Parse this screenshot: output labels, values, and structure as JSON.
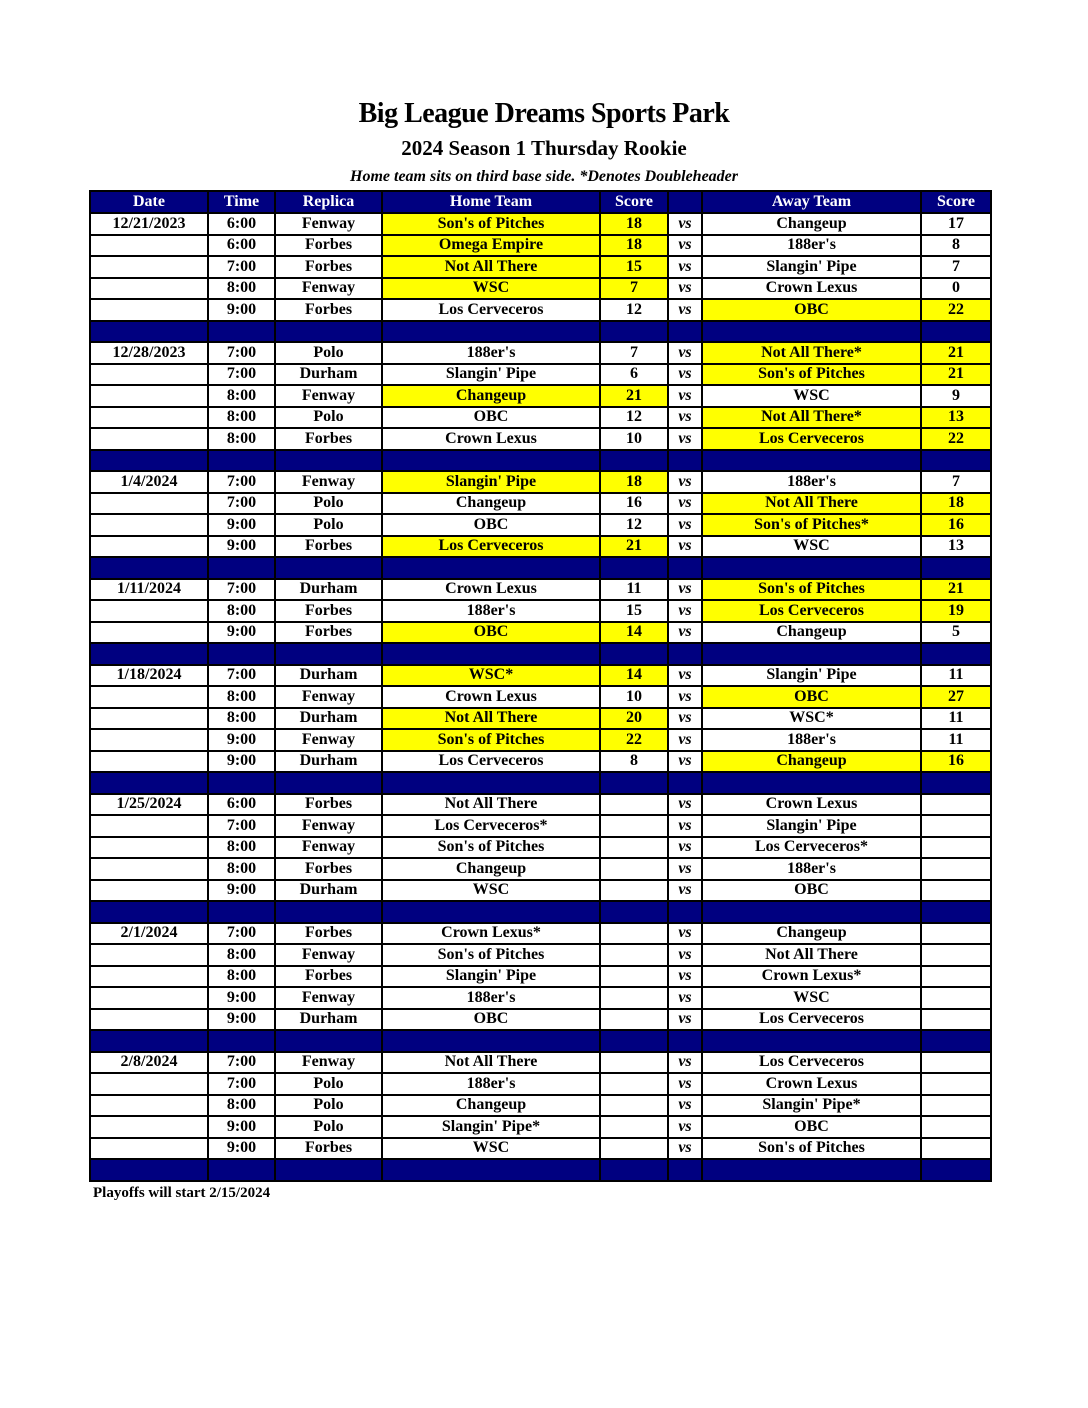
{
  "title": "Big League Dreams Sports Park",
  "subtitle": "2024 Season 1 Thursday Rookie",
  "note": "Home team sits on third base side.  *Denotes Doubleheader",
  "columns": [
    "Date",
    "Time",
    "Replica",
    "Home Team",
    "Score",
    "",
    "Away Team",
    "Score"
  ],
  "vs_label": "vs",
  "colors": {
    "header_bg": "#000080",
    "winner_highlight": "#ffff00"
  },
  "weeks": [
    {
      "date": "12/21/2023",
      "games": [
        {
          "time": "6:00",
          "replica": "Fenway",
          "home": "Son's of Pitches",
          "home_score": "18",
          "away": "Changeup",
          "away_score": "17",
          "winner": "home"
        },
        {
          "time": "6:00",
          "replica": "Forbes",
          "home": "Omega Empire",
          "home_score": "18",
          "away": "188er's",
          "away_score": "8",
          "winner": "home"
        },
        {
          "time": "7:00",
          "replica": "Forbes",
          "home": "Not All There",
          "home_score": "15",
          "away": "Slangin' Pipe",
          "away_score": "7",
          "winner": "home"
        },
        {
          "time": "8:00",
          "replica": "Fenway",
          "home": "WSC",
          "home_score": "7",
          "away": "Crown Lexus",
          "away_score": "0",
          "winner": "home"
        },
        {
          "time": "9:00",
          "replica": "Forbes",
          "home": "Los Cerveceros",
          "home_score": "12",
          "away": "OBC",
          "away_score": "22",
          "winner": "away"
        }
      ]
    },
    {
      "date": "12/28/2023",
      "games": [
        {
          "time": "7:00",
          "replica": "Polo",
          "home": "188er's",
          "home_score": "7",
          "away": "Not All There*",
          "away_score": "21",
          "winner": "away"
        },
        {
          "time": "7:00",
          "replica": "Durham",
          "home": "Slangin' Pipe",
          "home_score": "6",
          "away": "Son's of Pitches",
          "away_score": "21",
          "winner": "away"
        },
        {
          "time": "8:00",
          "replica": "Fenway",
          "home": "Changeup",
          "home_score": "21",
          "away": "WSC",
          "away_score": "9",
          "winner": "home"
        },
        {
          "time": "8:00",
          "replica": "Polo",
          "home": "OBC",
          "home_score": "12",
          "away": "Not All There*",
          "away_score": "13",
          "winner": "away"
        },
        {
          "time": "8:00",
          "replica": "Forbes",
          "home": "Crown Lexus",
          "home_score": "10",
          "away": "Los Cerveceros",
          "away_score": "22",
          "winner": "away"
        }
      ]
    },
    {
      "date": "1/4/2024",
      "games": [
        {
          "time": "7:00",
          "replica": "Fenway",
          "home": "Slangin' Pipe",
          "home_score": "18",
          "away": "188er's",
          "away_score": "7",
          "winner": "home"
        },
        {
          "time": "7:00",
          "replica": "Polo",
          "home": "Changeup",
          "home_score": "16",
          "away": "Not All There",
          "away_score": "18",
          "winner": "away"
        },
        {
          "time": "9:00",
          "replica": "Polo",
          "home": "OBC",
          "home_score": "12",
          "away": "Son's of Pitches*",
          "away_score": "16",
          "winner": "away"
        },
        {
          "time": "9:00",
          "replica": "Forbes",
          "home": "Los Cerveceros",
          "home_score": "21",
          "away": "WSC",
          "away_score": "13",
          "winner": "home"
        }
      ]
    },
    {
      "date": "1/11/2024",
      "games": [
        {
          "time": "7:00",
          "replica": "Durham",
          "home": "Crown Lexus",
          "home_score": "11",
          "away": "Son's of Pitches",
          "away_score": "21",
          "winner": "away"
        },
        {
          "time": "8:00",
          "replica": "Forbes",
          "home": "188er's",
          "home_score": "15",
          "away": "Los Cerveceros",
          "away_score": "19",
          "winner": "away"
        },
        {
          "time": "9:00",
          "replica": "Forbes",
          "home": "OBC",
          "home_score": "14",
          "away": "Changeup",
          "away_score": "5",
          "winner": "home"
        }
      ]
    },
    {
      "date": "1/18/2024",
      "games": [
        {
          "time": "7:00",
          "replica": "Durham",
          "home": "WSC*",
          "home_score": "14",
          "away": "Slangin' Pipe",
          "away_score": "11",
          "winner": "home"
        },
        {
          "time": "8:00",
          "replica": "Fenway",
          "home": "Crown Lexus",
          "home_score": "10",
          "away": "OBC",
          "away_score": "27",
          "winner": "away"
        },
        {
          "time": "8:00",
          "replica": "Durham",
          "home": "Not All There",
          "home_score": "20",
          "away": "WSC*",
          "away_score": "11",
          "winner": "home"
        },
        {
          "time": "9:00",
          "replica": "Fenway",
          "home": "Son's of Pitches",
          "home_score": "22",
          "away": "188er's",
          "away_score": "11",
          "winner": "home"
        },
        {
          "time": "9:00",
          "replica": "Durham",
          "home": "Los Cerveceros",
          "home_score": "8",
          "away": "Changeup",
          "away_score": "16",
          "winner": "away"
        }
      ]
    },
    {
      "date": "1/25/2024",
      "games": [
        {
          "time": "6:00",
          "replica": "Forbes",
          "home": "Not All There",
          "home_score": "",
          "away": "Crown Lexus",
          "away_score": "",
          "winner": null
        },
        {
          "time": "7:00",
          "replica": "Fenway",
          "home": "Los Cerveceros*",
          "home_score": "",
          "away": "Slangin' Pipe",
          "away_score": "",
          "winner": null
        },
        {
          "time": "8:00",
          "replica": "Fenway",
          "home": "Son's of Pitches",
          "home_score": "",
          "away": "Los Cerveceros*",
          "away_score": "",
          "winner": null
        },
        {
          "time": "8:00",
          "replica": "Forbes",
          "home": "Changeup",
          "home_score": "",
          "away": "188er's",
          "away_score": "",
          "winner": null
        },
        {
          "time": "9:00",
          "replica": "Durham",
          "home": "WSC",
          "home_score": "",
          "away": "OBC",
          "away_score": "",
          "winner": null
        }
      ]
    },
    {
      "date": "2/1/2024",
      "games": [
        {
          "time": "7:00",
          "replica": "Forbes",
          "home": "Crown Lexus*",
          "home_score": "",
          "away": "Changeup",
          "away_score": "",
          "winner": null
        },
        {
          "time": "8:00",
          "replica": "Fenway",
          "home": "Son's of Pitches",
          "home_score": "",
          "away": "Not All There",
          "away_score": "",
          "winner": null
        },
        {
          "time": "8:00",
          "replica": "Forbes",
          "home": "Slangin' Pipe",
          "home_score": "",
          "away": "Crown Lexus*",
          "away_score": "",
          "winner": null
        },
        {
          "time": "9:00",
          "replica": "Fenway",
          "home": "188er's",
          "home_score": "",
          "away": "WSC",
          "away_score": "",
          "winner": null
        },
        {
          "time": "9:00",
          "replica": "Durham",
          "home": "OBC",
          "home_score": "",
          "away": "Los Cerveceros",
          "away_score": "",
          "winner": null
        }
      ]
    },
    {
      "date": "2/8/2024",
      "games": [
        {
          "time": "7:00",
          "replica": "Fenway",
          "home": "Not All There",
          "home_score": "",
          "away": "Los Cerveceros",
          "away_score": "",
          "winner": null
        },
        {
          "time": "7:00",
          "replica": "Polo",
          "home": "188er's",
          "home_score": "",
          "away": "Crown Lexus",
          "away_score": "",
          "winner": null
        },
        {
          "time": "8:00",
          "replica": "Polo",
          "home": "Changeup",
          "home_score": "",
          "away": "Slangin' Pipe*",
          "away_score": "",
          "winner": null
        },
        {
          "time": "9:00",
          "replica": "Polo",
          "home": "Slangin' Pipe*",
          "home_score": "",
          "away": "OBC",
          "away_score": "",
          "winner": null
        },
        {
          "time": "9:00",
          "replica": "Forbes",
          "home": "WSC",
          "home_score": "",
          "away": "Son's of Pitches",
          "away_score": "",
          "winner": null
        }
      ]
    }
  ],
  "footer": "Playoffs will start 2/15/2024"
}
